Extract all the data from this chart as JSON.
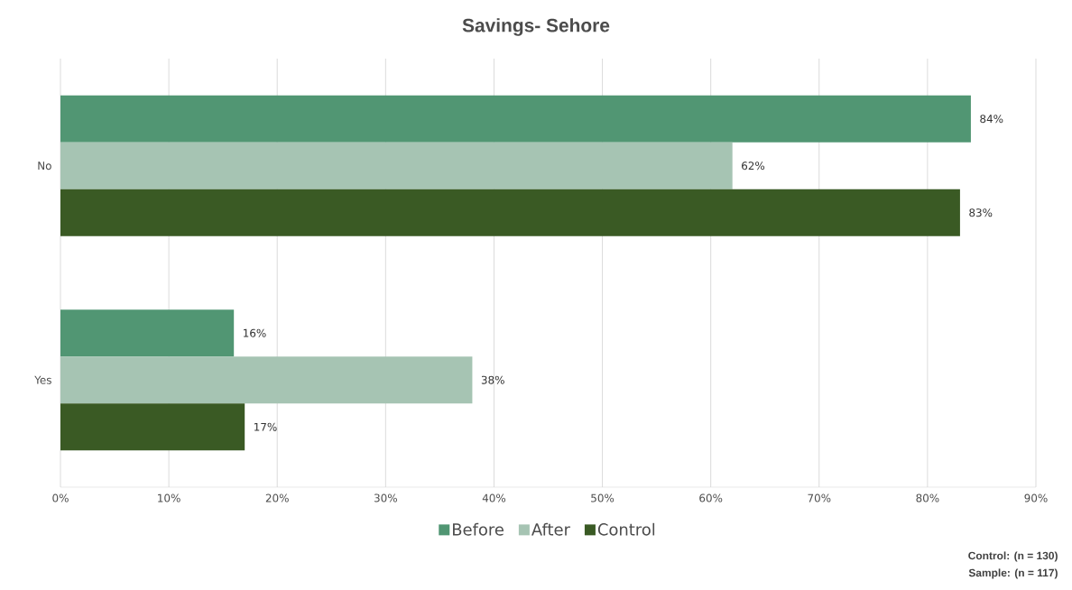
{
  "chart_data": {
    "type": "bar",
    "orientation": "horizontal",
    "title": "Savings- Sehore",
    "categories": [
      "No",
      "Yes"
    ],
    "series": [
      {
        "name": "Before",
        "color": "#519673",
        "values": [
          84,
          16
        ],
        "value_labels": [
          "84%",
          "16%"
        ]
      },
      {
        "name": "After",
        "color": "#a6c4b3",
        "values": [
          62,
          38
        ],
        "value_labels": [
          "62%",
          "38%"
        ]
      },
      {
        "name": "Control",
        "color": "#3a5a24",
        "values": [
          83,
          17
        ],
        "value_labels": [
          "83%",
          "17%"
        ]
      }
    ],
    "xlim": [
      0,
      90
    ],
    "xticks": [
      {
        "value": 0,
        "label": "0%"
      },
      {
        "value": 10,
        "label": "10%"
      },
      {
        "value": 20,
        "label": "20%"
      },
      {
        "value": 30,
        "label": "30%"
      },
      {
        "value": 40,
        "label": "40%"
      },
      {
        "value": 50,
        "label": "50%"
      },
      {
        "value": 60,
        "label": "60%"
      },
      {
        "value": 70,
        "label": "70%"
      },
      {
        "value": 80,
        "label": "80%"
      },
      {
        "value": 90,
        "label": "90%"
      }
    ],
    "grid": "x",
    "legend": "bottom",
    "annotations": [
      "**Control: (n = 130)**",
      "**Sample: (n = 117)**"
    ]
  }
}
